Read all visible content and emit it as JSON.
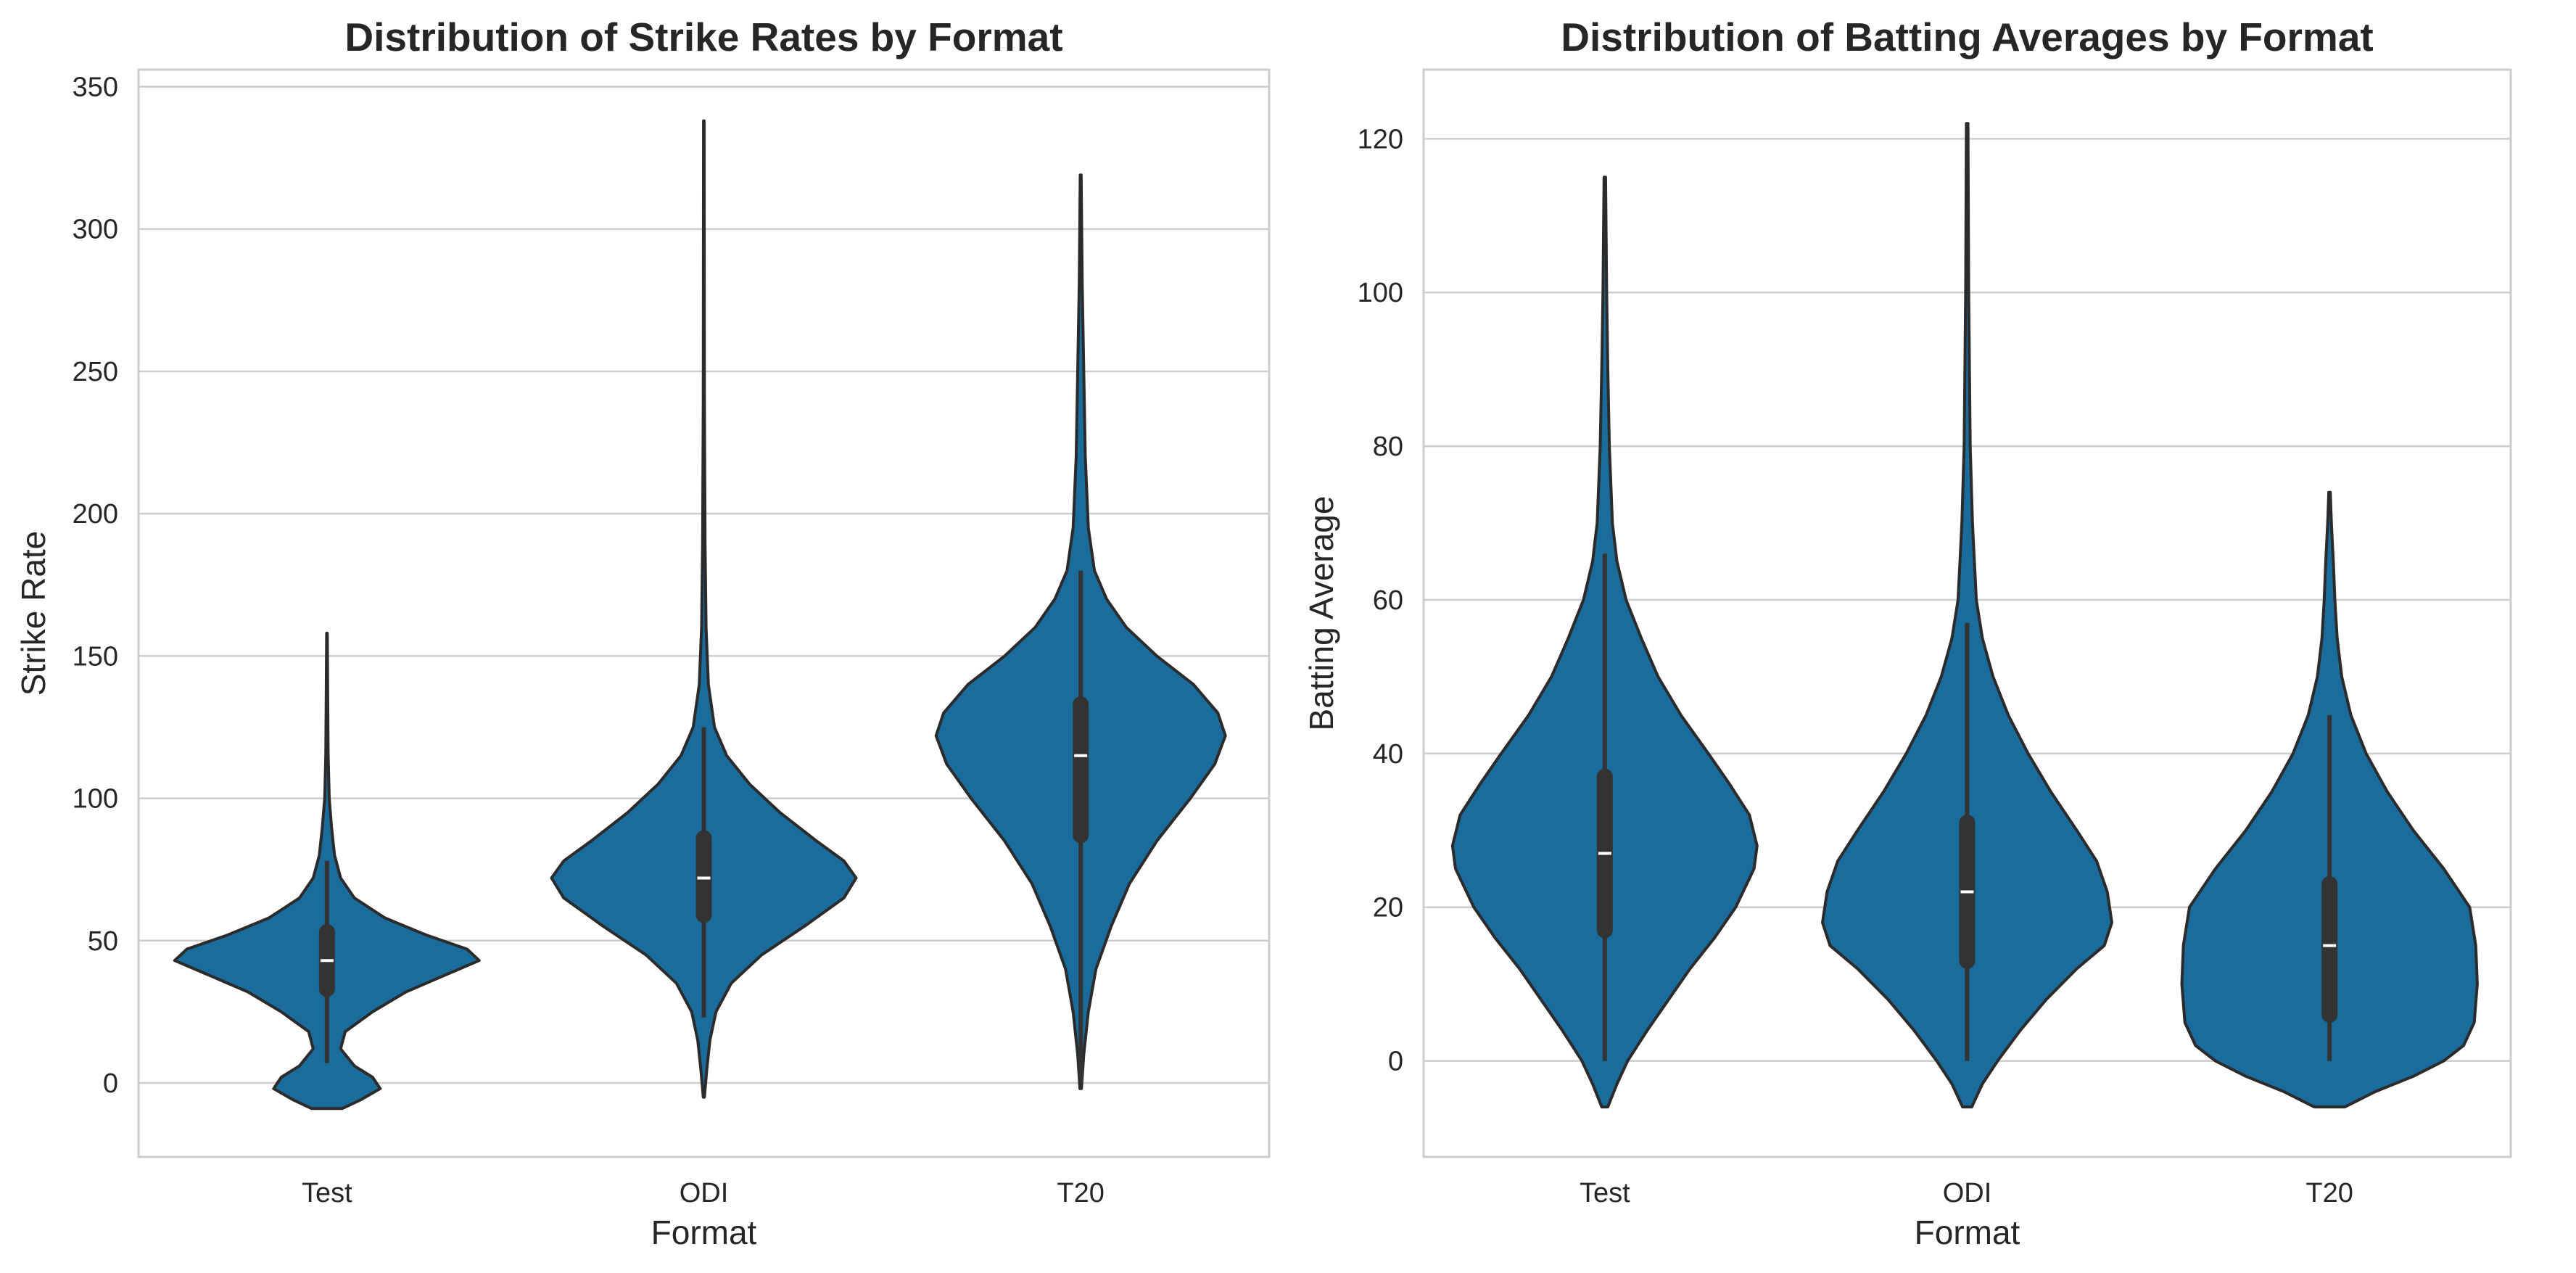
{
  "colors": {
    "violin_fill": "#1a6c9c",
    "violin_edge": "#2b2b2b",
    "box": "#333333",
    "median": "#ffffff",
    "grid": "#cccccc",
    "frame": "#cccccc",
    "text": "#262626"
  },
  "chart_data": [
    {
      "type": "violin",
      "title": "Distribution of Strike Rates by Format",
      "xlabel": "Format",
      "ylabel": "Strike Rate",
      "categories": [
        "Test",
        "ODI",
        "T20"
      ],
      "ylim": [
        -26,
        356
      ],
      "yticks": [
        0,
        50,
        100,
        150,
        200,
        250,
        300,
        350
      ],
      "grid": "horizontal",
      "series": [
        {
          "category": "Test",
          "q1": 33,
          "median": 43,
          "q3": 53,
          "whisker_low": 7,
          "whisker_high": 78,
          "min": -9,
          "max": 158,
          "profile": [
            [
              -9,
              0.1
            ],
            [
              -6,
              0.22
            ],
            [
              -2,
              0.35
            ],
            [
              2,
              0.3
            ],
            [
              6,
              0.18
            ],
            [
              12,
              0.09
            ],
            [
              18,
              0.12
            ],
            [
              25,
              0.3
            ],
            [
              32,
              0.52
            ],
            [
              38,
              0.78
            ],
            [
              43,
              1.0
            ],
            [
              47,
              0.92
            ],
            [
              52,
              0.65
            ],
            [
              58,
              0.38
            ],
            [
              65,
              0.18
            ],
            [
              72,
              0.09
            ],
            [
              80,
              0.05
            ],
            [
              90,
              0.03
            ],
            [
              100,
              0.015
            ],
            [
              115,
              0.008
            ],
            [
              135,
              0.005
            ],
            [
              158,
              0.002
            ]
          ]
        },
        {
          "category": "ODI",
          "q1": 59,
          "median": 72,
          "q3": 86,
          "whisker_low": 23,
          "whisker_high": 125,
          "min": -5,
          "max": 338,
          "profile": [
            [
              -5,
              0.004
            ],
            [
              5,
              0.02
            ],
            [
              15,
              0.04
            ],
            [
              25,
              0.08
            ],
            [
              35,
              0.18
            ],
            [
              45,
              0.38
            ],
            [
              55,
              0.66
            ],
            [
              65,
              0.92
            ],
            [
              72,
              1.0
            ],
            [
              78,
              0.92
            ],
            [
              85,
              0.74
            ],
            [
              95,
              0.5
            ],
            [
              105,
              0.3
            ],
            [
              115,
              0.15
            ],
            [
              125,
              0.07
            ],
            [
              140,
              0.03
            ],
            [
              160,
              0.015
            ],
            [
              190,
              0.008
            ],
            [
              240,
              0.004
            ],
            [
              290,
              0.003
            ],
            [
              338,
              0.002
            ]
          ]
        },
        {
          "category": "T20",
          "q1": 87,
          "median": 115,
          "q3": 133,
          "whisker_low": 0,
          "whisker_high": 180,
          "min": -2,
          "max": 319,
          "profile": [
            [
              -2,
              0.005
            ],
            [
              10,
              0.02
            ],
            [
              25,
              0.05
            ],
            [
              40,
              0.1
            ],
            [
              55,
              0.2
            ],
            [
              70,
              0.32
            ],
            [
              85,
              0.5
            ],
            [
              100,
              0.72
            ],
            [
              112,
              0.88
            ],
            [
              122,
              0.95
            ],
            [
              130,
              0.9
            ],
            [
              140,
              0.74
            ],
            [
              150,
              0.5
            ],
            [
              160,
              0.3
            ],
            [
              170,
              0.17
            ],
            [
              180,
              0.09
            ],
            [
              195,
              0.05
            ],
            [
              220,
              0.03
            ],
            [
              250,
              0.02
            ],
            [
              280,
              0.01
            ],
            [
              319,
              0.003
            ]
          ]
        }
      ]
    },
    {
      "type": "violin",
      "title": "Distribution of Batting Averages by Format",
      "xlabel": "Format",
      "ylabel": "Batting Average",
      "categories": [
        "Test",
        "ODI",
        "T20"
      ],
      "ylim": [
        -12.5,
        129
      ],
      "yticks": [
        0,
        20,
        40,
        60,
        80,
        100,
        120
      ],
      "grid": "horizontal",
      "series": [
        {
          "category": "Test",
          "q1": 17,
          "median": 27,
          "q3": 37,
          "whisker_low": 0,
          "whisker_high": 66,
          "min": -6,
          "max": 115,
          "profile": [
            [
              -6,
              0.02
            ],
            [
              -3,
              0.08
            ],
            [
              0,
              0.15
            ],
            [
              4,
              0.28
            ],
            [
              8,
              0.42
            ],
            [
              12,
              0.56
            ],
            [
              16,
              0.72
            ],
            [
              20,
              0.86
            ],
            [
              25,
              0.98
            ],
            [
              28,
              1.0
            ],
            [
              32,
              0.95
            ],
            [
              36,
              0.82
            ],
            [
              40,
              0.68
            ],
            [
              45,
              0.5
            ],
            [
              50,
              0.35
            ],
            [
              55,
              0.24
            ],
            [
              60,
              0.14
            ],
            [
              65,
              0.08
            ],
            [
              70,
              0.05
            ],
            [
              80,
              0.03
            ],
            [
              90,
              0.02
            ],
            [
              100,
              0.012
            ],
            [
              115,
              0.005
            ]
          ]
        },
        {
          "category": "ODI",
          "q1": 13,
          "median": 22,
          "q3": 31,
          "whisker_low": 0,
          "whisker_high": 57,
          "min": -6,
          "max": 122,
          "profile": [
            [
              -6,
              0.03
            ],
            [
              -3,
              0.1
            ],
            [
              0,
              0.2
            ],
            [
              4,
              0.35
            ],
            [
              8,
              0.52
            ],
            [
              12,
              0.72
            ],
            [
              15,
              0.9
            ],
            [
              18,
              0.95
            ],
            [
              22,
              0.92
            ],
            [
              26,
              0.85
            ],
            [
              30,
              0.72
            ],
            [
              35,
              0.55
            ],
            [
              40,
              0.4
            ],
            [
              45,
              0.27
            ],
            [
              50,
              0.17
            ],
            [
              55,
              0.1
            ],
            [
              60,
              0.06
            ],
            [
              70,
              0.035
            ],
            [
              80,
              0.02
            ],
            [
              100,
              0.01
            ],
            [
              122,
              0.005
            ]
          ]
        },
        {
          "category": "T20",
          "q1": 6,
          "median": 15,
          "q3": 23,
          "whisker_low": 0,
          "whisker_high": 45,
          "min": -6,
          "max": 74,
          "profile": [
            [
              -6,
              0.1
            ],
            [
              -4,
              0.3
            ],
            [
              -2,
              0.55
            ],
            [
              0,
              0.75
            ],
            [
              2,
              0.88
            ],
            [
              5,
              0.95
            ],
            [
              10,
              0.97
            ],
            [
              15,
              0.96
            ],
            [
              20,
              0.92
            ],
            [
              25,
              0.75
            ],
            [
              30,
              0.55
            ],
            [
              35,
              0.38
            ],
            [
              40,
              0.24
            ],
            [
              45,
              0.14
            ],
            [
              50,
              0.08
            ],
            [
              55,
              0.05
            ],
            [
              60,
              0.035
            ],
            [
              65,
              0.025
            ],
            [
              70,
              0.012
            ],
            [
              74,
              0.005
            ]
          ]
        }
      ]
    }
  ]
}
